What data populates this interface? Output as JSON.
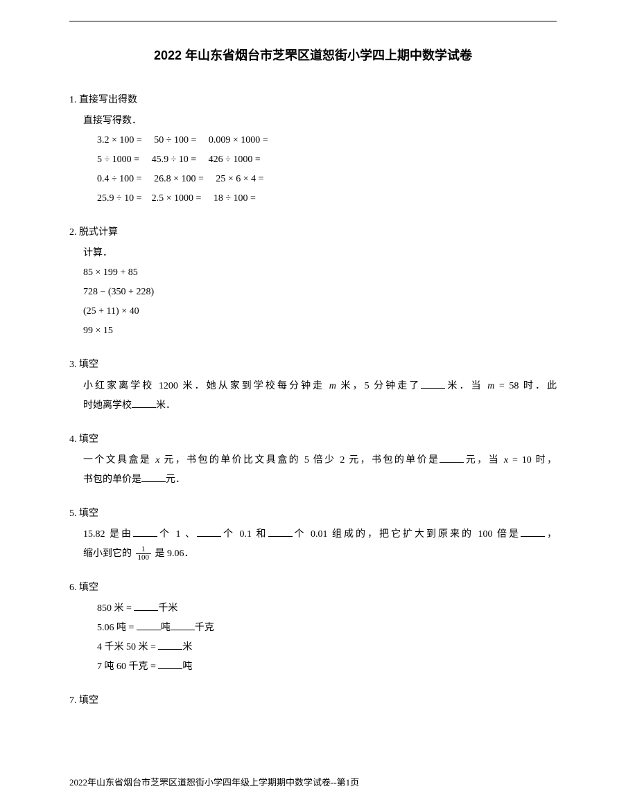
{
  "title": "2022 年山东省烟台市芝罘区道恕街小学四上期中数学试卷",
  "questions": {
    "q1": {
      "num": "1.",
      "label": "直接写出得数",
      "subtitle": "直接写得数．",
      "lines": [
        "3.2 × 100 =     50 ÷ 100 =     0.009 × 1000 =",
        "5 ÷ 1000 =     45.9 ÷ 10 =     426 ÷ 1000 =",
        "0.4 ÷ 100 =     26.8 × 100 =     25 × 6 × 4 =",
        "25.9 ÷ 10 =    2.5 × 1000 =     18 ÷ 100 ="
      ]
    },
    "q2": {
      "num": "2.",
      "label": "脱式计算",
      "subtitle": "计算．",
      "lines": [
        "85 × 199 + 85",
        "728 − (350 + 228)",
        "(25 + 11) × 40",
        "99 × 15"
      ]
    },
    "q3": {
      "num": "3.",
      "label": "填空",
      "pre1": "小红家离学校 1200 米．她从家到学校每分钟走 ",
      "var1": "m",
      "mid1": " 米，5 分钟走了",
      "mid2": "米．当 ",
      "var2": "m",
      "eq2": " = 58",
      "mid3": " 时．此",
      "line2a": "时她离学校",
      "line2b": "米．"
    },
    "q4": {
      "num": "4.",
      "label": "填空",
      "pre1": "一个文具盒是 ",
      "var1": "x",
      "mid1": " 元，书包的单价比文具盒的 5 倍少 2 元，书包的单价是",
      "mid2": "元，当 ",
      "var2": "x",
      "eq2": " = 10",
      "mid3": " 时，",
      "line2a": "书包的单价是",
      "line2b": "元．"
    },
    "q5": {
      "num": "5.",
      "label": "填空",
      "pre1": "15.82 是由",
      "mid1": "个 1 、",
      "mid2": "个 0.1 和",
      "mid3": "个 0.01 组成的，把它扩大到原来的 100 倍是",
      "mid4": "，",
      "line2a": "缩小到它的 ",
      "frac_num": "1",
      "frac_den": "100",
      "line2b": " 是 9.06．"
    },
    "q6": {
      "num": "6.",
      "label": "填空",
      "l1a": "850 米 = ",
      "l1b": "千米",
      "l2a": "5.06 吨 = ",
      "l2b": "吨",
      "l2c": "千克",
      "l3a": "4 千米 50 米 = ",
      "l3b": "米",
      "l4a": "7 吨 60 千克 = ",
      "l4b": "吨"
    },
    "q7": {
      "num": "7.",
      "label": "填空"
    }
  },
  "footer": "2022年山东省烟台市芝罘区道恕街小学四年级上学期期中数学试卷--第1页"
}
